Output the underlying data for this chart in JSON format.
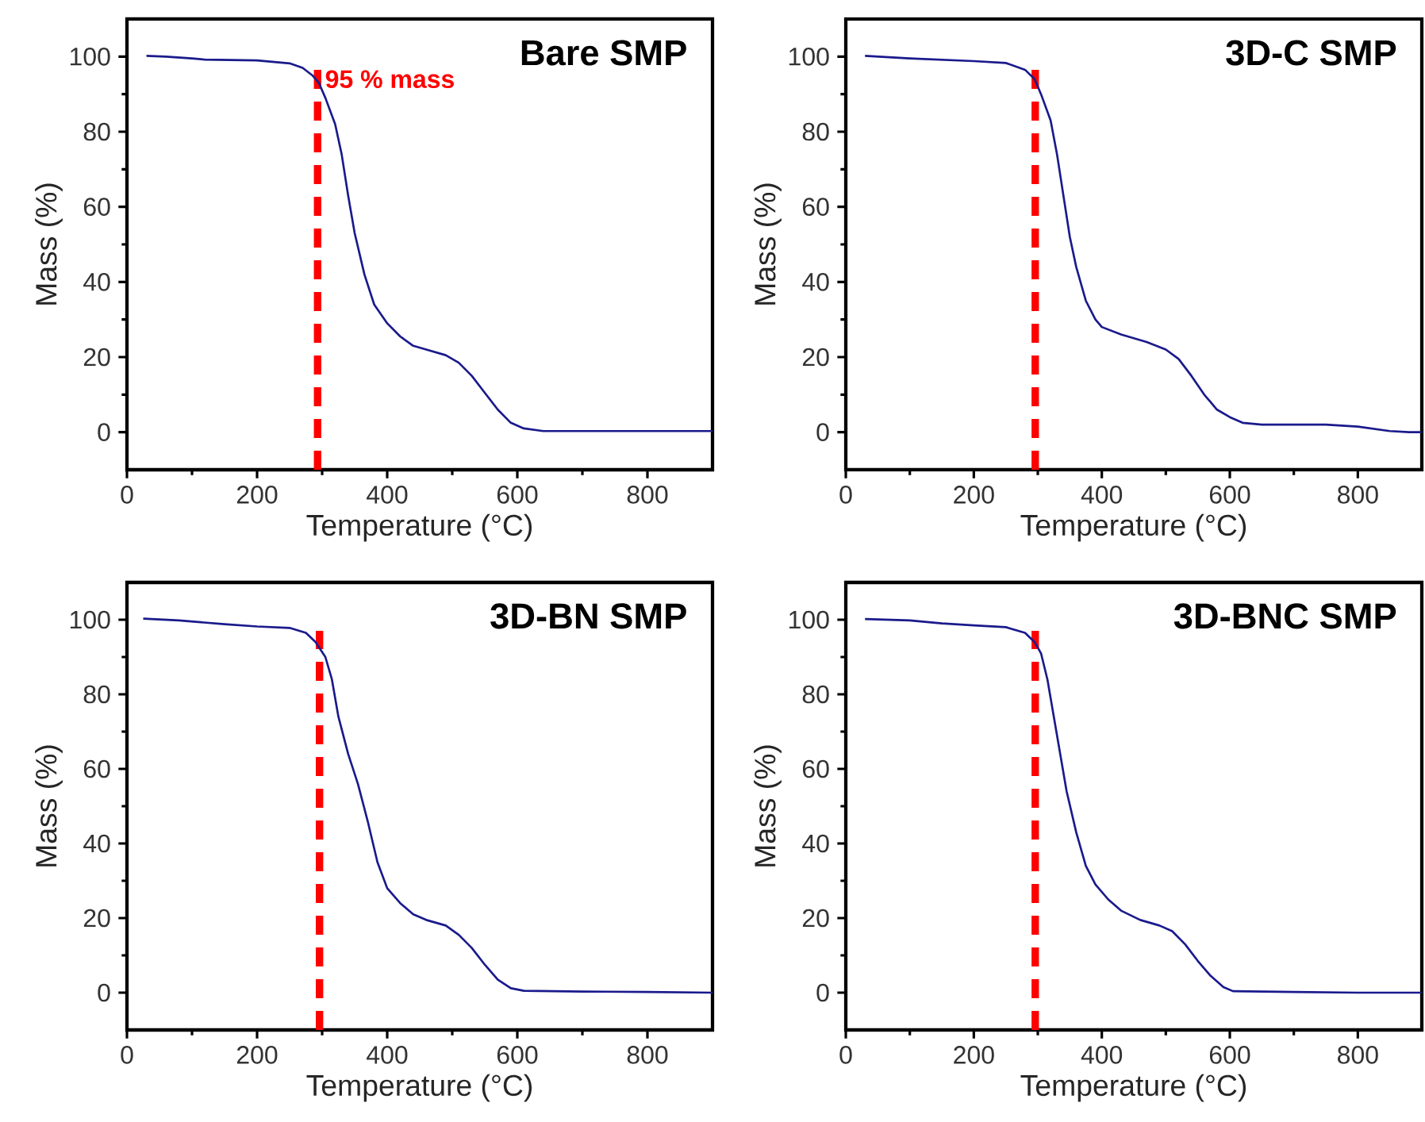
{
  "chart_data": [
    {
      "type": "line",
      "title": "Bare SMP",
      "xlabel": "Temperature (°C)",
      "ylabel": "Mass (%)",
      "xlim": [
        0,
        900
      ],
      "ylim": [
        -10,
        110
      ],
      "xticks": [
        0,
        200,
        400,
        600,
        800
      ],
      "yticks": [
        0,
        20,
        40,
        60,
        80,
        100
      ],
      "series": [
        {
          "color": "#1a1a8c",
          "x": [
            30,
            60,
            100,
            120,
            200,
            250,
            270,
            285,
            295,
            305,
            320,
            330,
            340,
            350,
            365,
            380,
            400,
            420,
            440,
            460,
            490,
            510,
            530,
            550,
            570,
            590,
            610,
            640,
            700,
            800,
            900
          ],
          "values": [
            100.2,
            100,
            99.5,
            99.2,
            99,
            98.2,
            97,
            95,
            93,
            89,
            82,
            74,
            63,
            53,
            42,
            34,
            29,
            25.5,
            23,
            22,
            20.5,
            18.5,
            15,
            10.5,
            6,
            2.5,
            1,
            0.3,
            0.3,
            0.3,
            0.3
          ]
        }
      ],
      "ref_lines": [
        {
          "axis": "x",
          "value": 293,
          "label": "95 % mass",
          "color": "#ff0000",
          "line_style": "dashed"
        }
      ]
    },
    {
      "type": "line",
      "title": "3D-C SMP",
      "xlabel": "Temperature (°C)",
      "ylabel": "Mass (%)",
      "xlim": [
        0,
        900
      ],
      "ylim": [
        -10,
        110
      ],
      "xticks": [
        0,
        200,
        400,
        600,
        800
      ],
      "yticks": [
        0,
        20,
        40,
        60,
        80,
        100
      ],
      "series": [
        {
          "color": "#1a1a8c",
          "x": [
            30,
            100,
            200,
            250,
            280,
            295,
            305,
            320,
            330,
            340,
            350,
            360,
            375,
            390,
            400,
            430,
            470,
            500,
            520,
            540,
            560,
            580,
            600,
            620,
            650,
            750,
            800,
            850,
            880,
            900
          ],
          "values": [
            100.2,
            99.5,
            98.8,
            98.3,
            96.5,
            94,
            90,
            83,
            74,
            63,
            52,
            44,
            35,
            30,
            28,
            26,
            24,
            22,
            19.5,
            15,
            10,
            6,
            4,
            2.5,
            2,
            2,
            1.5,
            0.3,
            0,
            0
          ]
        }
      ],
      "ref_lines": [
        {
          "axis": "x",
          "value": 296,
          "color": "#ff0000",
          "line_style": "dashed"
        }
      ]
    },
    {
      "type": "line",
      "title": "3D-BN SMP",
      "xlabel": "Temperature (°C)",
      "ylabel": "Mass (%)",
      "xlim": [
        0,
        900
      ],
      "ylim": [
        -10,
        110
      ],
      "xticks": [
        0,
        200,
        400,
        600,
        800
      ],
      "yticks": [
        0,
        20,
        40,
        60,
        80,
        100
      ],
      "series": [
        {
          "color": "#1a1a8c",
          "x": [
            25,
            80,
            150,
            200,
            250,
            275,
            290,
            305,
            315,
            325,
            340,
            355,
            370,
            385,
            400,
            420,
            440,
            460,
            490,
            510,
            530,
            550,
            570,
            590,
            610,
            700,
            800,
            900
          ],
          "values": [
            100.3,
            99.8,
            98.8,
            98.2,
            97.8,
            96.5,
            94,
            90,
            84,
            74,
            64,
            56,
            46,
            35,
            28,
            24,
            21,
            19.5,
            18,
            15.5,
            12,
            7.5,
            3.5,
            1.2,
            0.5,
            0.3,
            0.2,
            0
          ]
        }
      ],
      "ref_lines": [
        {
          "axis": "x",
          "value": 296,
          "color": "#ff0000",
          "line_style": "dashed"
        }
      ]
    },
    {
      "type": "line",
      "title": "3D-BNC SMP",
      "xlabel": "Temperature (°C)",
      "ylabel": "Mass (%)",
      "xlim": [
        0,
        900
      ],
      "ylim": [
        -10,
        110
      ],
      "xticks": [
        0,
        200,
        400,
        600,
        800
      ],
      "yticks": [
        0,
        20,
        40,
        60,
        80,
        100
      ],
      "series": [
        {
          "color": "#1a1a8c",
          "x": [
            30,
            100,
            150,
            200,
            250,
            280,
            295,
            305,
            315,
            325,
            335,
            345,
            360,
            375,
            390,
            410,
            430,
            460,
            490,
            510,
            530,
            550,
            570,
            590,
            605,
            700,
            800,
            900
          ],
          "values": [
            100.2,
            99.8,
            99,
            98.5,
            98,
            96.5,
            94,
            91,
            84,
            74,
            64,
            54,
            43,
            34,
            29,
            25,
            22,
            19.5,
            18,
            16.5,
            13,
            8.5,
            4.5,
            1.5,
            0.4,
            0.2,
            0,
            0
          ]
        }
      ],
      "ref_lines": [
        {
          "axis": "x",
          "value": 296,
          "color": "#ff0000",
          "line_style": "dashed"
        }
      ]
    }
  ]
}
